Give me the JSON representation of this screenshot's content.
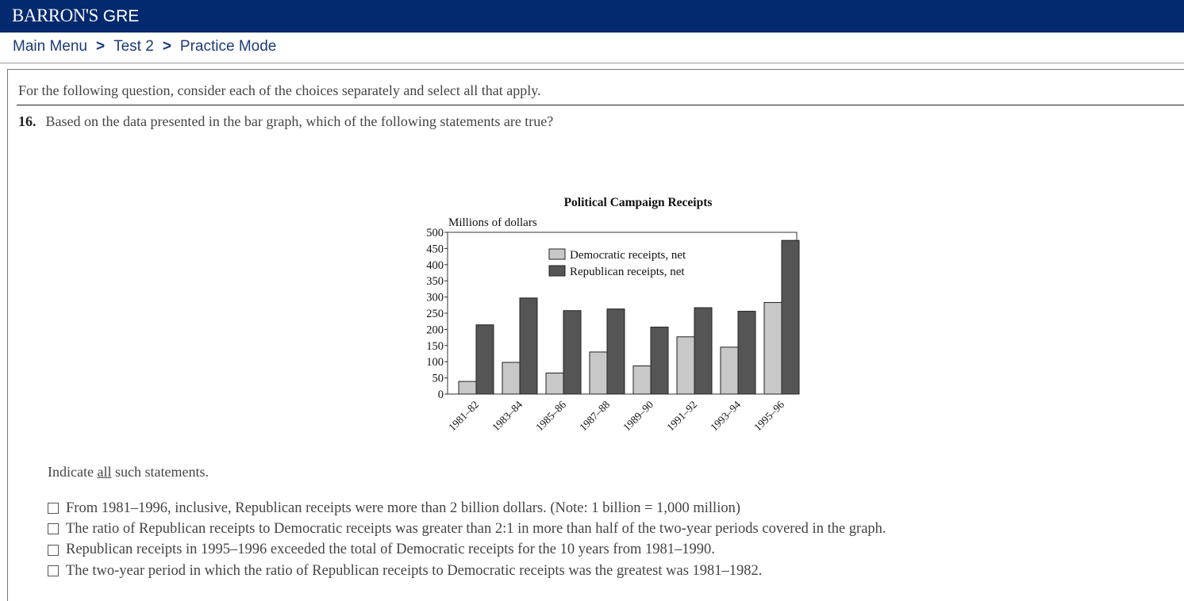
{
  "header": {
    "brand": "BARRON'S",
    "product": "GRE"
  },
  "breadcrumb": {
    "items": [
      "Main Menu",
      "Test 2",
      "Practice Mode"
    ],
    "separator": ">"
  },
  "question": {
    "instruction": "For the following question, consider each of the choices separately and select all that apply.",
    "number": "16.",
    "text": "Based on the data presented in the bar graph, which of the following statements are true?",
    "indicate_prefix": "Indicate ",
    "indicate_emphasis": "all",
    "indicate_suffix": " such statements.",
    "choices": [
      "From 1981–1996, inclusive, Republican receipts were more than 2 billion dollars. (Note: 1 billion = 1,000 million)",
      "The ratio of Republican receipts to Democratic receipts was greater than 2:1 in more than half of the two-year periods covered in the graph.",
      "Republican receipts in 1995–1996 exceeded the total of Democratic receipts for the 10 years from 1981–1990.",
      "The two-year period in which the ratio of Republican receipts to Democratic receipts was the greatest was 1981–1982."
    ]
  },
  "chart_data": {
    "type": "bar",
    "title": "Political Campaign Receipts",
    "ylabel": "Millions of dollars",
    "ylim": [
      0,
      500
    ],
    "yticks": [
      0,
      50,
      100,
      150,
      200,
      250,
      300,
      350,
      400,
      450,
      500
    ],
    "categories": [
      "1981–82",
      "1983–84",
      "1985–86",
      "1987–88",
      "1989–90",
      "1991–92",
      "1993–94",
      "1995–96"
    ],
    "series": [
      {
        "name": "Democratic receipts, net",
        "color": "#c8c8c8",
        "values": [
          39,
          98,
          65,
          130,
          87,
          177,
          145,
          283
        ]
      },
      {
        "name": "Republican receipts, net",
        "color": "#555555",
        "values": [
          214,
          297,
          258,
          263,
          207,
          267,
          256,
          475
        ]
      }
    ],
    "legend": "top-center",
    "grid": false
  },
  "colors": {
    "header_bg": "#03296e",
    "link": "#1c3a7a"
  }
}
